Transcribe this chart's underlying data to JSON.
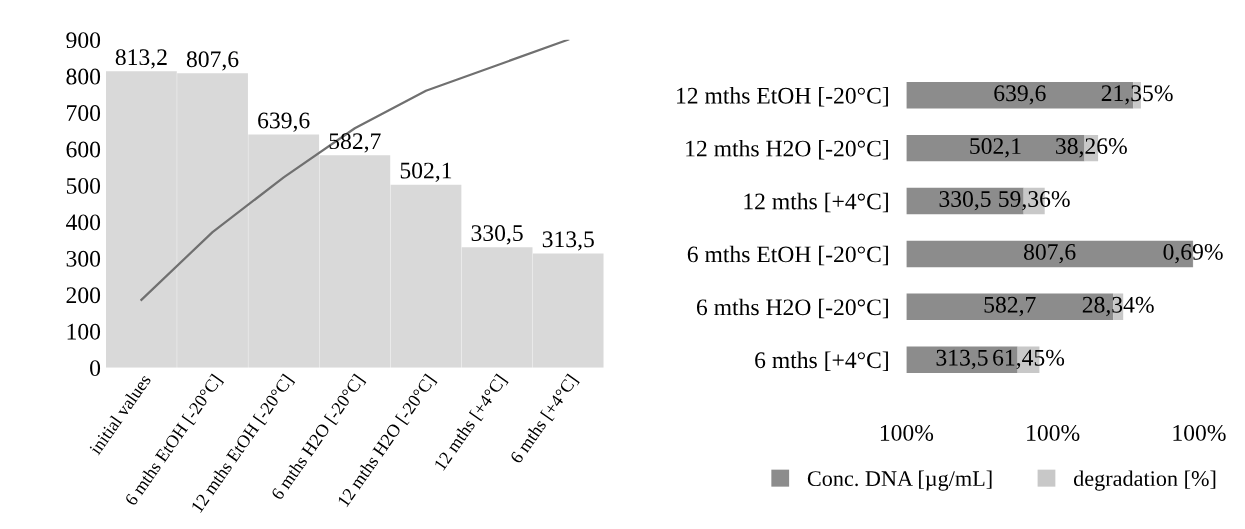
{
  "chart_data": [
    {
      "type": "bar",
      "categories": [
        "initial values",
        "6 mths EtOH [-20°C]",
        "12 mths EtOH [-20°C]",
        "6 mths H2O [-20°C]",
        "12 mths H2O [-20°C]",
        "12 mths [+4°C]",
        "6 mths [+4°C]"
      ],
      "series": [
        {
          "type": "bar",
          "color": "#d9d9d9",
          "values": [
            813.2,
            807.6,
            639.6,
            582.7,
            502.1,
            330.5,
            313.5
          ],
          "value_labels": [
            "813,2",
            "807,6",
            "639,6",
            "582,7",
            "502,1",
            "330,5",
            "313,5"
          ]
        },
        {
          "type": "line",
          "color": "#707070",
          "values": [
            186,
            372,
            522,
            657,
            760,
            830,
            900
          ]
        }
      ],
      "ylim": [
        0,
        900
      ],
      "yticks": [
        0,
        100,
        200,
        300,
        400,
        500,
        600,
        700,
        800,
        900
      ],
      "grid": false,
      "legend": false
    },
    {
      "type": "bar",
      "orientation": "horizontal",
      "stacked": true,
      "categories": [
        "12 mths EtOH [-20°C]",
        "12 mths H2O [-20°C]",
        "12 mths [+4°C]",
        "6 mths EtOH [-20°C]",
        "6 mths H2O [-20°C]",
        "6 mths [+4°C]"
      ],
      "series": [
        {
          "name": "Conc. DNA [µg/mL]",
          "color": "#8c8c8c",
          "values": [
            639.6,
            502.1,
            330.5,
            807.6,
            582.7,
            313.5
          ],
          "value_labels": [
            "639,6",
            "502,1",
            "330,5",
            "807,6",
            "582,7",
            "313,5"
          ]
        },
        {
          "name": "degradation [%]",
          "color": "#c8c8c8",
          "values": [
            21.35,
            38.26,
            59.36,
            0.69,
            28.34,
            61.45
          ],
          "value_labels": [
            "21,35%",
            "38,26%",
            "59,36%",
            "0,69%",
            "28,34%",
            "61,45%"
          ]
        }
      ],
      "annotations": [
        "100%",
        "100%",
        "100%"
      ],
      "legend": "bottom"
    }
  ]
}
